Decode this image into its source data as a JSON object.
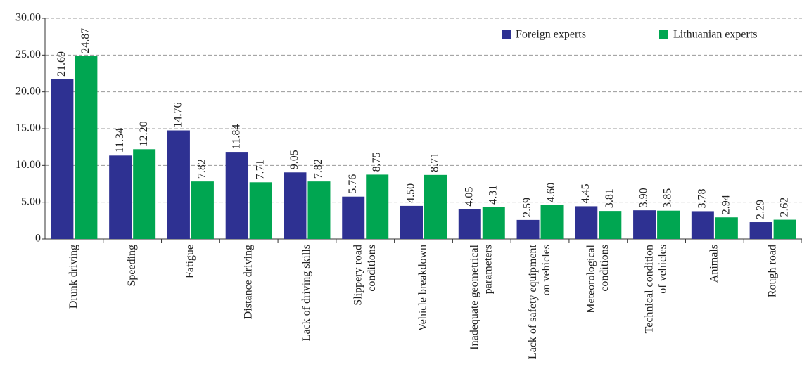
{
  "chart_data": {
    "type": "bar",
    "categories": [
      "Drunk driving",
      "Speeding",
      "Fatigue",
      "Distance driving",
      "Lack of driving skills",
      "Slippery road\nconditions",
      "Vehicle breakdown",
      "Inadequate geometrical\nparameters",
      "Lack of safety equipment\non vehicles",
      "Meteorological\nconditions",
      "Technical condition\nof vehicles",
      "Animals",
      "Rough road"
    ],
    "series": [
      {
        "name": "Foreign experts",
        "color": "#2e3192",
        "values": [
          21.69,
          11.34,
          14.76,
          11.84,
          9.05,
          5.76,
          4.5,
          4.05,
          2.59,
          4.45,
          3.9,
          3.78,
          2.29
        ],
        "value_labels": [
          "21.69",
          "11.34",
          "14.76",
          "11.84",
          "9.05",
          "5.76",
          "4.50",
          "4.05",
          "2.59",
          "4.45",
          "3.90",
          "3.78",
          "2.29"
        ]
      },
      {
        "name": "Lithuanian experts",
        "color": "#00a651",
        "values": [
          24.87,
          12.2,
          7.82,
          7.71,
          7.82,
          8.75,
          8.71,
          4.31,
          4.6,
          3.81,
          3.85,
          2.94,
          2.62
        ],
        "value_labels": [
          "24.87",
          "12.20",
          "7.82",
          "7.71",
          "7.82",
          "8.75",
          "8.71",
          "4.31",
          "4.60",
          "3.81",
          "3.85",
          "2.94",
          "2.62"
        ]
      }
    ],
    "ylim": [
      0,
      30
    ],
    "yticks": [
      0,
      {
        "value": 5,
        "label": "5.00"
      },
      {
        "value": 10,
        "label": "10.00"
      },
      {
        "value": 15,
        "label": "15.00"
      },
      {
        "value": 20,
        "label": "20.00"
      },
      {
        "value": 25,
        "label": "25.00"
      },
      {
        "value": 30,
        "label": "30.00"
      }
    ],
    "grid": true,
    "legend": "top-right"
  }
}
